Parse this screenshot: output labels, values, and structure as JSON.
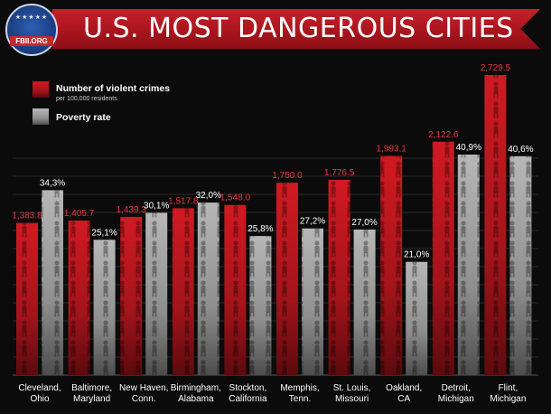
{
  "header": {
    "title": "U.S. MOST DANGEROUS CITIES",
    "logo_text": "FBII.ORG"
  },
  "colors": {
    "crime_bar": "#c4141c",
    "poverty_bar": "#9a9a9a",
    "crime_label": "#e23b3b",
    "poverty_label": "#ffffff",
    "title_banner": "#b51820"
  },
  "chart_data": {
    "type": "bar",
    "title": "U.S. MOST DANGEROUS CITIES",
    "categories": [
      [
        "Cleveland,",
        "Ohio"
      ],
      [
        "Baltimore,",
        "Maryland"
      ],
      [
        "New Haven,",
        "Conn."
      ],
      [
        "Birmingham,",
        "Alabama"
      ],
      [
        "Stockton,",
        "California"
      ],
      [
        "Memphis,",
        "Tenn."
      ],
      [
        "St. Louis,",
        "Missouri"
      ],
      [
        "Oakland,",
        "CA"
      ],
      [
        "Detroit,",
        "Michigan"
      ],
      [
        "Flint,",
        "Michigan"
      ]
    ],
    "series": [
      {
        "name": "Number of violent crimes",
        "note": "per 100,000 residents",
        "values": [
          1383.8,
          1405.7,
          1439.3,
          1517.8,
          1548.0,
          1750.0,
          1776.5,
          1993.1,
          2122.6,
          2729.5
        ],
        "labels": [
          "1,383.8",
          "1,405.7",
          "1,439.3",
          "1,517.8",
          "1,548.0",
          "1,750.0",
          "1,776.5",
          "1,993.1",
          "2,122.6",
          "2,729.5"
        ]
      },
      {
        "name": "Poverty rate",
        "values": [
          34.3,
          25.1,
          30.1,
          32.0,
          25.8,
          27.2,
          27.0,
          21.0,
          40.9,
          40.6
        ],
        "labels": [
          "34,3%",
          "25,1%",
          "30,1%",
          "32,0%",
          "25,8%",
          "27,2%",
          "27,0%",
          "21,0%",
          "40,9%",
          "40,6%"
        ]
      }
    ],
    "legend_placement": "top-left",
    "grid": true
  }
}
